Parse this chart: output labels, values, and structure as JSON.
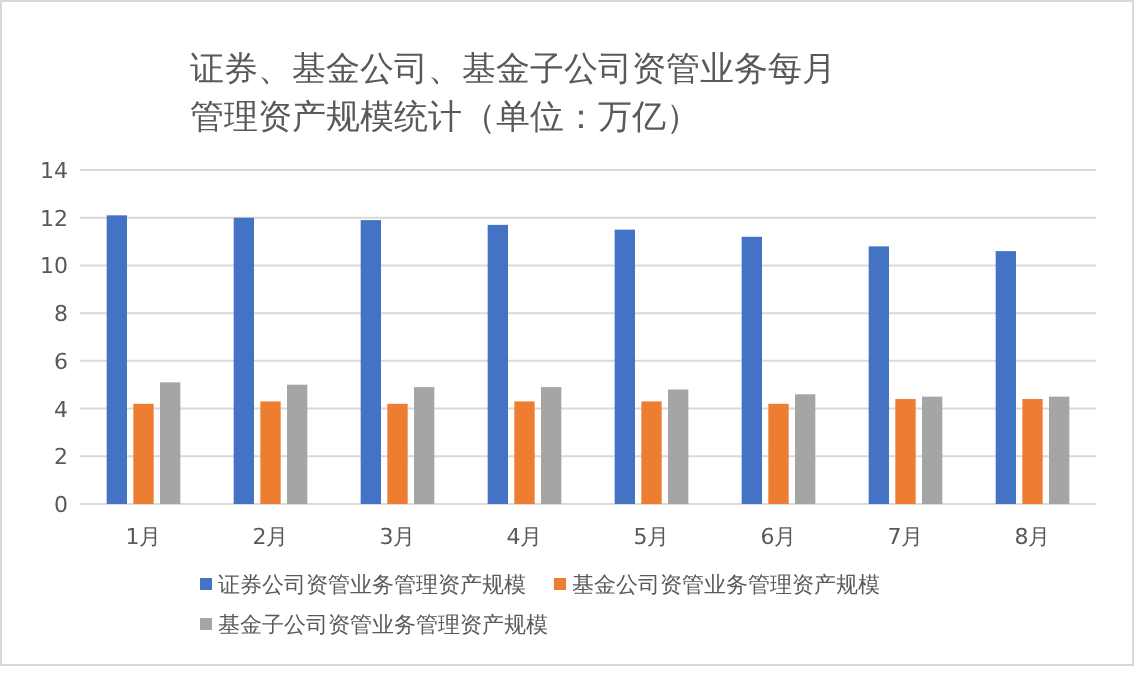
{
  "chart_data": {
    "type": "bar",
    "title": "证券、基金公司、基金子公司资管业务每月管理资产规模统计（单位：万亿）",
    "categories": [
      "1月",
      "2月",
      "3月",
      "4月",
      "5月",
      "6月",
      "7月",
      "8月"
    ],
    "series": [
      {
        "name": "证券公司资管业务管理资产规模",
        "color": "#4472c4",
        "values": [
          12.1,
          12.0,
          11.9,
          11.7,
          11.5,
          11.2,
          10.8,
          10.6
        ]
      },
      {
        "name": "基金公司资管业务管理资产规模",
        "color": "#ed7d31",
        "values": [
          4.2,
          4.3,
          4.2,
          4.3,
          4.3,
          4.2,
          4.4,
          4.4
        ]
      },
      {
        "name": "基金子公司资管业务管理资产规模",
        "color": "#a5a5a5",
        "values": [
          5.1,
          5.0,
          4.9,
          4.9,
          4.8,
          4.6,
          4.5,
          4.5
        ]
      }
    ],
    "ylim": [
      0,
      14
    ],
    "yticks": [
      0,
      2,
      4,
      6,
      8,
      10,
      12,
      14
    ],
    "grid": "y",
    "legend": "bottom"
  }
}
